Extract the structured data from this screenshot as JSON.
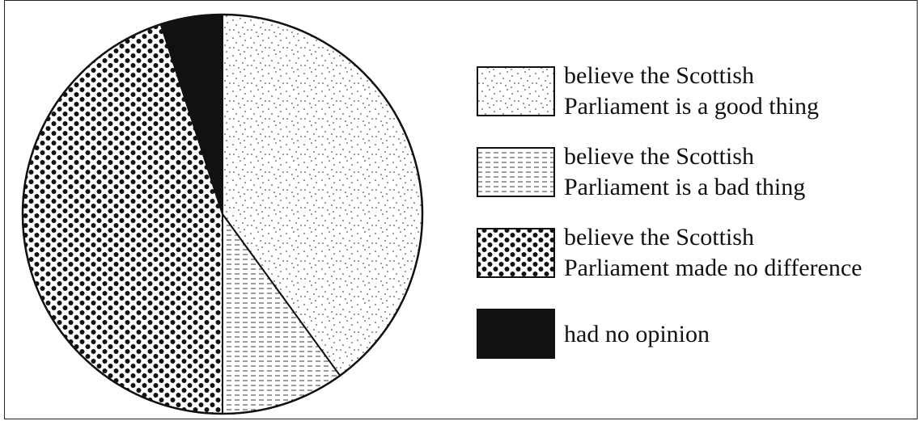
{
  "chart_data": {
    "type": "pie",
    "title": "",
    "slices": [
      {
        "label_lines": [
          "believe the Scottish",
          "Parliament is a good thing"
        ],
        "value": 40,
        "pattern": "sparse-dots"
      },
      {
        "label_lines": [
          "believe the Scottish",
          "Parliament is a bad thing"
        ],
        "value": 10,
        "pattern": "dashed-lines"
      },
      {
        "label_lines": [
          "believe the Scottish",
          "Parliament made no difference"
        ],
        "value": 45,
        "pattern": "heavy-dots"
      },
      {
        "label_lines": [
          "had no opinion"
        ],
        "value": 5,
        "pattern": "solid-black"
      }
    ],
    "start": "top",
    "direction": "clockwise",
    "legend_position": "right",
    "colors": {
      "ink": "#111111",
      "background": "#ffffff"
    }
  }
}
